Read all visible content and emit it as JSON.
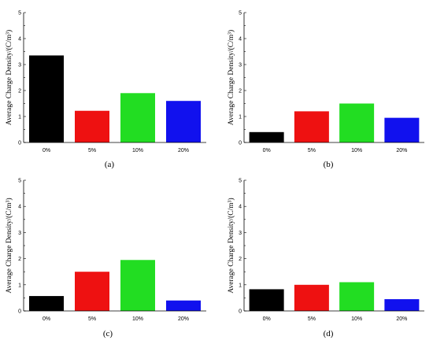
{
  "chart_data": [
    {
      "type": "bar",
      "panel_label": "(a)",
      "categories": [
        "0%",
        "5%",
        "10%",
        "20%"
      ],
      "values": [
        3.35,
        1.22,
        1.9,
        1.6
      ],
      "ylabel": "Average Charge Density/(C/m³)",
      "ylim": [
        0,
        5
      ],
      "yticks": [
        "0",
        "1",
        "2",
        "3",
        "4",
        "5"
      ],
      "colors": [
        "#000000",
        "#ee1111",
        "#22dd22",
        "#1111ee"
      ],
      "grid": false
    },
    {
      "type": "bar",
      "panel_label": "(b)",
      "categories": [
        "0%",
        "5%",
        "10%",
        "20%"
      ],
      "values": [
        0.4,
        1.2,
        1.5,
        0.95
      ],
      "ylabel": "Average Charge Density/(C/m³)",
      "ylim": [
        0,
        5
      ],
      "yticks": [
        "0",
        "1",
        "2",
        "3",
        "4",
        "5"
      ],
      "colors": [
        "#000000",
        "#ee1111",
        "#22dd22",
        "#1111ee"
      ],
      "grid": false
    },
    {
      "type": "bar",
      "panel_label": "(c)",
      "categories": [
        "0%",
        "5%",
        "10%",
        "20%"
      ],
      "values": [
        0.57,
        1.5,
        1.95,
        0.4
      ],
      "ylabel": "Average Charge Density/(C/m³)",
      "ylim": [
        0,
        5
      ],
      "yticks": [
        "0",
        "1",
        "2",
        "3",
        "4",
        "5"
      ],
      "colors": [
        "#000000",
        "#ee1111",
        "#22dd22",
        "#1111ee"
      ],
      "grid": false
    },
    {
      "type": "bar",
      "panel_label": "(d)",
      "categories": [
        "0%",
        "5%",
        "10%",
        "20%"
      ],
      "values": [
        0.83,
        1.0,
        1.1,
        0.45
      ],
      "ylabel": "Average Charge Density/(C/m³)",
      "ylim": [
        0,
        5
      ],
      "yticks": [
        "0",
        "1",
        "2",
        "3",
        "4",
        "5"
      ],
      "colors": [
        "#000000",
        "#ee1111",
        "#22dd22",
        "#1111ee"
      ],
      "grid": false
    }
  ]
}
